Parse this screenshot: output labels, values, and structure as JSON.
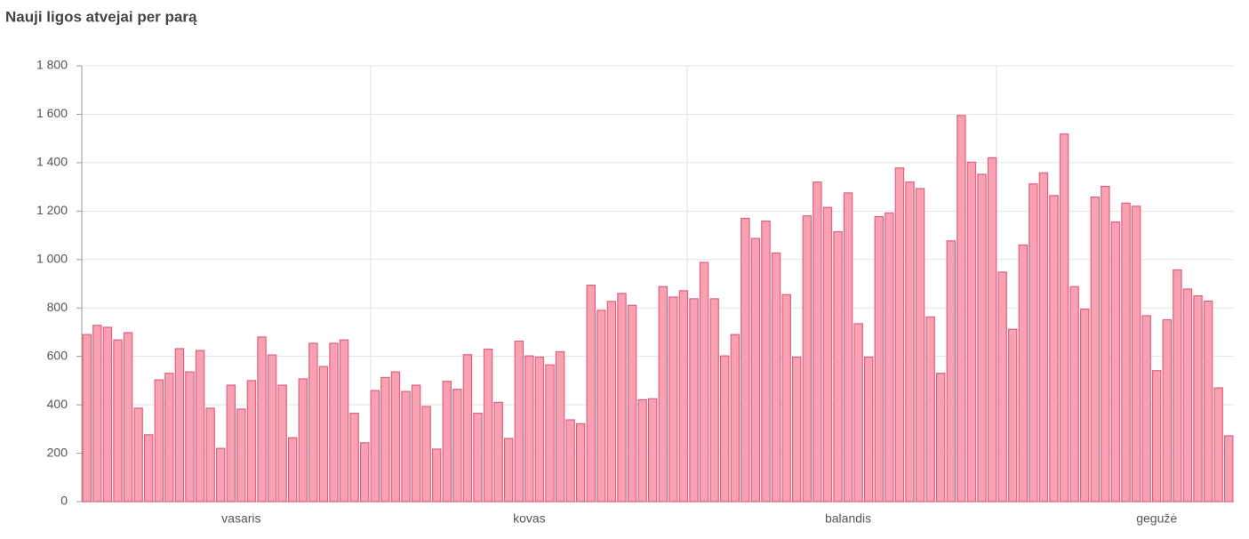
{
  "chart_data": {
    "type": "bar",
    "title": "Nauji ligos atvejai per parą",
    "categories": [
      null,
      null,
      null,
      null,
      null,
      null,
      null,
      null,
      null,
      null,
      null,
      null,
      null,
      null,
      null,
      "vasaris",
      null,
      null,
      null,
      null,
      null,
      null,
      null,
      null,
      null,
      null,
      null,
      null,
      null,
      null,
      null,
      null,
      null,
      null,
      null,
      null,
      null,
      null,
      null,
      null,
      null,
      null,
      null,
      "kovas",
      null,
      null,
      null,
      null,
      null,
      null,
      null,
      null,
      null,
      null,
      null,
      null,
      null,
      null,
      null,
      null,
      null,
      null,
      null,
      null,
      null,
      null,
      null,
      null,
      null,
      null,
      null,
      null,
      null,
      null,
      "balandis",
      null,
      null,
      null,
      null,
      null,
      null,
      null,
      null,
      null,
      null,
      null,
      null,
      null,
      null,
      null,
      null,
      null,
      null,
      null,
      null,
      null,
      null,
      null,
      null,
      null,
      null,
      null,
      null,
      null,
      "gegužė",
      null,
      null,
      null,
      null,
      null,
      null,
      null
    ],
    "values": [
      690,
      728,
      720,
      668,
      698,
      386,
      276,
      503,
      530,
      632,
      536,
      624,
      386,
      220,
      481,
      382,
      500,
      680,
      606,
      481,
      264,
      507,
      654,
      558,
      654,
      668,
      365,
      243,
      459,
      513,
      536,
      455,
      481,
      393,
      217,
      497,
      464,
      607,
      365,
      630,
      410,
      261,
      663,
      602,
      597,
      565,
      619,
      338,
      322,
      894,
      790,
      827,
      860,
      811,
      421,
      425,
      888,
      845,
      871,
      838,
      988,
      838,
      602,
      690,
      1170,
      1087,
      1159,
      1027,
      855,
      597,
      1180,
      1320,
      1215,
      1115,
      1275,
      735,
      597,
      1177,
      1192,
      1378,
      1320,
      1293,
      763,
      530,
      1077,
      1595,
      1402,
      1352,
      1420,
      948,
      712,
      1060,
      1312,
      1358,
      1264,
      1518,
      888,
      795,
      1258,
      1302,
      1155,
      1233,
      1220,
      768,
      541,
      751,
      957,
      878,
      850,
      828,
      470,
      272
    ],
    "color": "#f7a1b3",
    "edge_color": "#e2607f",
    "ylim": [
      0,
      1800
    ],
    "yticks": [
      0,
      {
        "value": 200,
        "label": "200"
      },
      400,
      600,
      800,
      {
        "value": 1000,
        "label": "1 000"
      },
      {
        "value": 1200,
        "label": "1 200"
      },
      {
        "value": 1400,
        "label": "1 400"
      },
      {
        "value": 1600,
        "label": "1 600"
      },
      {
        "value": 1800,
        "label": "1 800"
      }
    ],
    "grid": true
  }
}
